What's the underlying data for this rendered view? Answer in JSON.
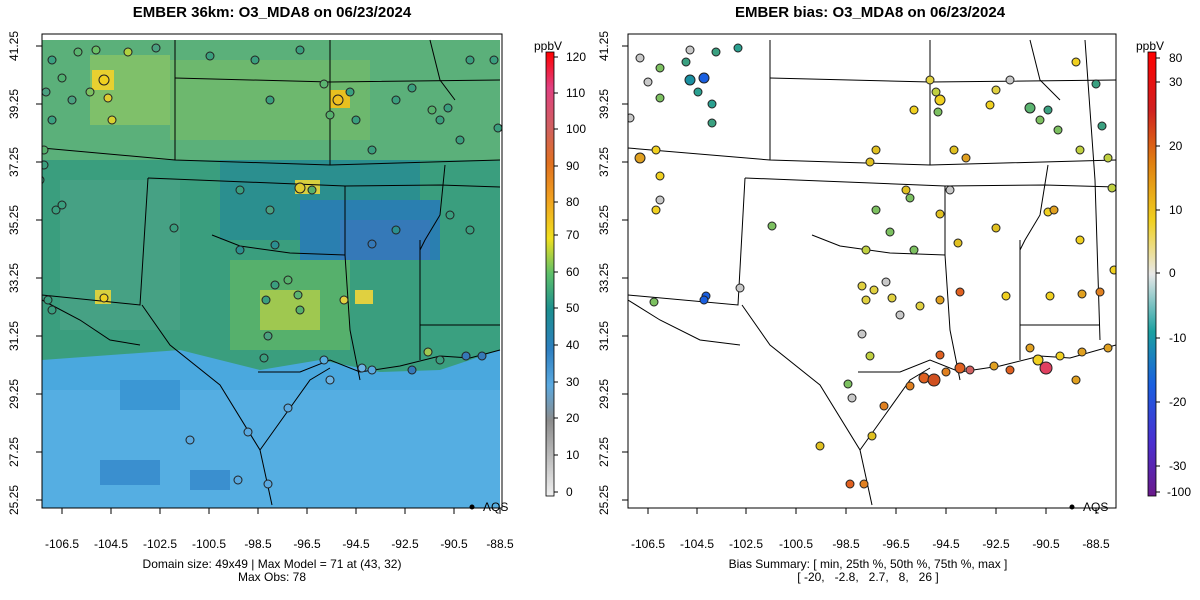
{
  "left_panel": {
    "title": "EMBER 36km: O3_MDA8 on 06/23/2024",
    "colorbar_unit": "ppbV",
    "colorbar_ticks": [
      "0",
      "10",
      "20",
      "30",
      "40",
      "50",
      "60",
      "70",
      "80",
      "90",
      "100",
      "110",
      "120"
    ],
    "legend_label": "AQS",
    "footer_line1": "Domain size: 49x49 | Max Model = 71 at (43, 32)",
    "footer_line2": "Max Obs: 78"
  },
  "right_panel": {
    "title": "EMBER bias: O3_MDA8 on 06/23/2024",
    "colorbar_unit": "ppbV",
    "colorbar_ticks": [
      "-100",
      "-30",
      "-20",
      "-10",
      "0",
      "10",
      "20",
      "30",
      "80"
    ],
    "legend_label": "AQS",
    "footer_line1": "Bias Summary: [ min, 25th %, 50th %, 75th %, max ]",
    "footer_line2": "[ -20,   -2.8,   2.7,   8,   26 ]"
  },
  "axes": {
    "x_ticks": [
      "-106.5",
      "-104.5",
      "-102.5",
      "-100.5",
      "-98.5",
      "-96.5",
      "-94.5",
      "-92.5",
      "-90.5",
      "-88.5"
    ],
    "y_ticks": [
      "41.25",
      "39.25",
      "37.25",
      "35.25",
      "33.25",
      "31.25",
      "29.25",
      "27.25",
      "25.25"
    ]
  },
  "colors": {
    "frame": "#000000",
    "ocean_model": "#4aa8de",
    "land_model": "#2f9a7a",
    "ocean_deep": "#3a8fcf"
  }
}
